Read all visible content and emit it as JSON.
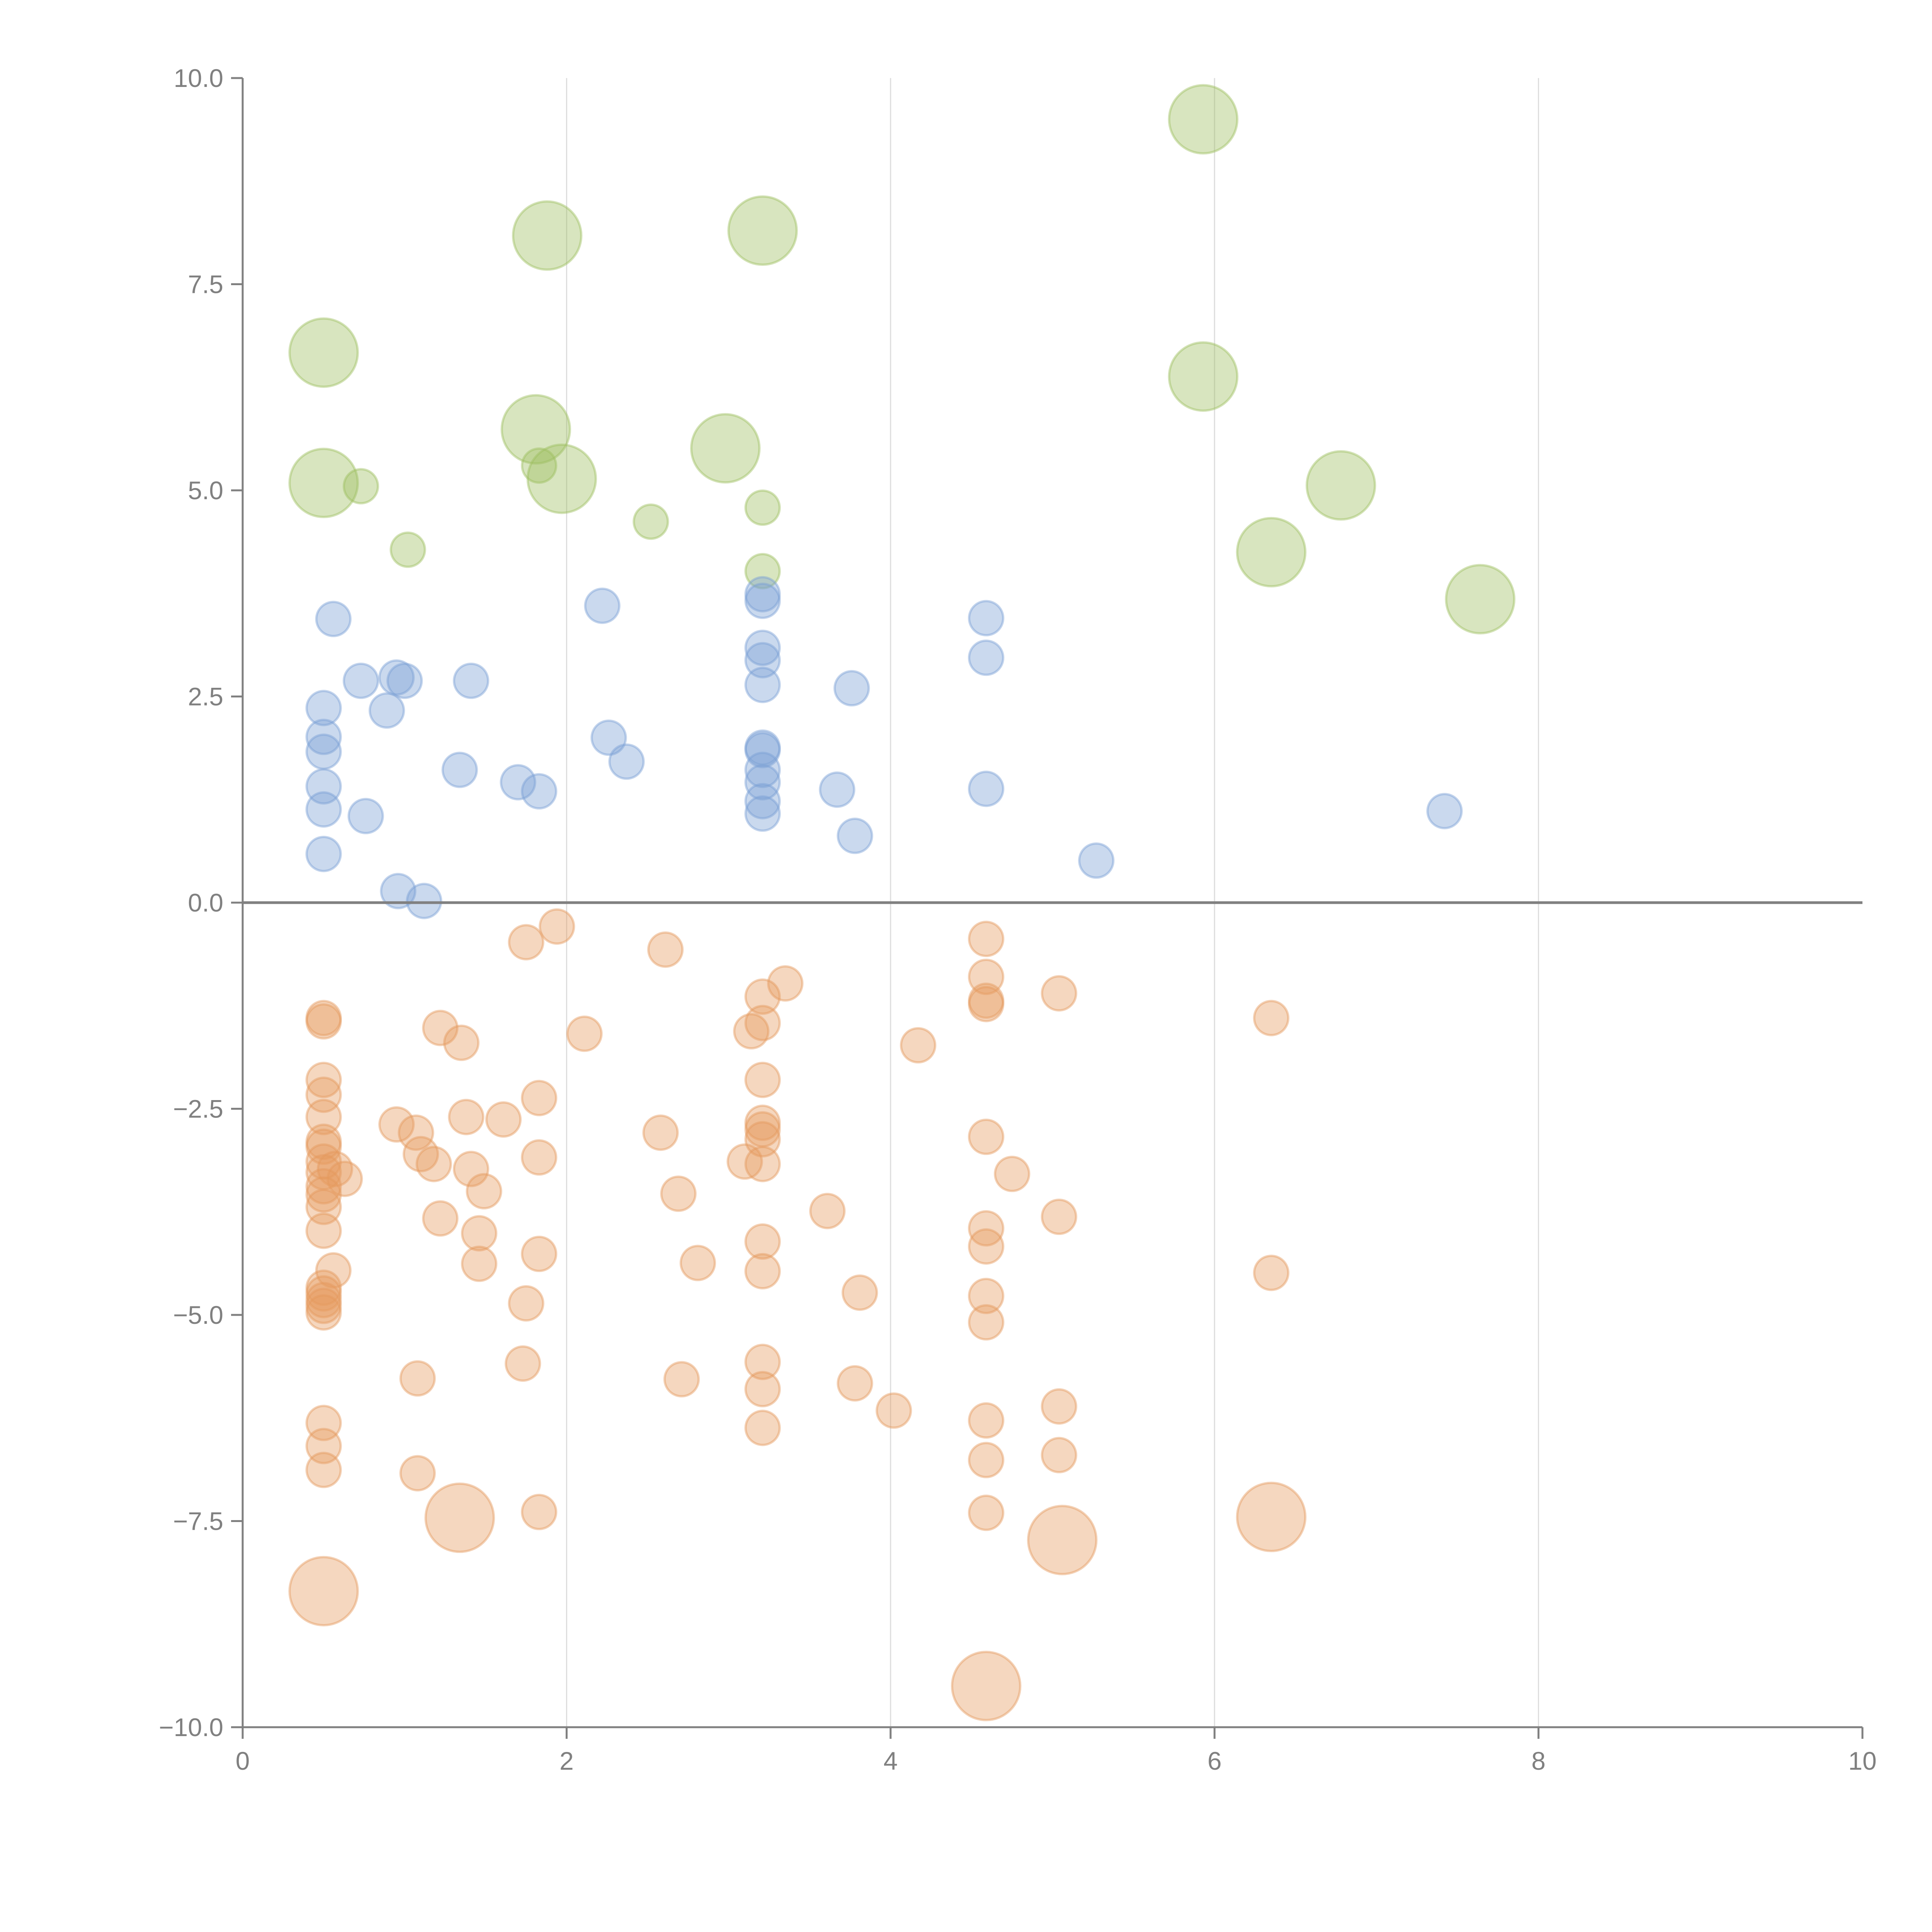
{
  "chart_data": {
    "type": "scatter",
    "title": "",
    "xlabel": "",
    "ylabel": "",
    "xlim": [
      0,
      10
    ],
    "ylim": [
      -10,
      10
    ],
    "grid": {
      "x": true,
      "y": false
    },
    "x_ticks": [
      0,
      2,
      4,
      6,
      8,
      10
    ],
    "x_tick_labels": [
      "0",
      "2",
      "4",
      "6",
      "8",
      "10"
    ],
    "y_ticks": [
      10,
      7.5,
      5,
      2.5,
      0,
      -2.5,
      -5,
      -7.5,
      -10
    ],
    "y_tick_labels": [
      "10.0",
      "7.5",
      "5.0",
      "2.5",
      "0.0",
      "−2.5",
      "−5.0",
      "−7.5",
      "−10.0"
    ],
    "point_format": [
      "x",
      "y",
      "size"
    ],
    "series": [
      {
        "name": "green",
        "color": "#9dbf5f",
        "points": [
          [
            0.5,
            6.67,
            4
          ],
          [
            0.5,
            5.09,
            4
          ],
          [
            1.88,
            8.09,
            4
          ],
          [
            3.21,
            8.15,
            4
          ],
          [
            5.93,
            9.5,
            4
          ],
          [
            1.81,
            5.74,
            4
          ],
          [
            1.97,
            5.14,
            4
          ],
          [
            2.98,
            5.51,
            4
          ],
          [
            5.93,
            6.38,
            4
          ],
          [
            6.78,
            5.06,
            4
          ],
          [
            6.35,
            4.25,
            4
          ],
          [
            7.64,
            3.68,
            4
          ],
          [
            0.73,
            5.05,
            1
          ],
          [
            1.83,
            5.3,
            1
          ],
          [
            1.02,
            4.28,
            1
          ],
          [
            2.52,
            4.62,
            1
          ],
          [
            3.21,
            4.79,
            1
          ],
          [
            3.21,
            4.02,
            1
          ]
        ]
      },
      {
        "name": "blue",
        "color": "#7a9fd4",
        "points": [
          [
            0.56,
            3.44,
            1
          ],
          [
            2.22,
            3.6,
            1
          ],
          [
            3.21,
            3.74,
            1
          ],
          [
            3.21,
            3.66,
            1
          ],
          [
            4.59,
            3.45,
            1
          ],
          [
            3.21,
            3.09,
            1
          ],
          [
            3.21,
            2.94,
            1
          ],
          [
            4.59,
            2.97,
            1
          ],
          [
            0.73,
            2.69,
            1
          ],
          [
            0.95,
            2.73,
            1
          ],
          [
            1.0,
            2.69,
            1
          ],
          [
            1.41,
            2.69,
            1
          ],
          [
            3.21,
            2.64,
            1
          ],
          [
            3.76,
            2.6,
            1
          ],
          [
            0.5,
            2.36,
            1
          ],
          [
            0.89,
            2.33,
            1
          ],
          [
            0.5,
            2.01,
            1
          ],
          [
            2.26,
            2.0,
            1
          ],
          [
            3.21,
            1.88,
            1
          ],
          [
            3.21,
            1.85,
            1
          ],
          [
            0.5,
            1.83,
            1
          ],
          [
            2.37,
            1.71,
            1
          ],
          [
            1.34,
            1.61,
            1
          ],
          [
            3.21,
            1.61,
            1
          ],
          [
            3.21,
            1.46,
            1
          ],
          [
            1.7,
            1.46,
            1
          ],
          [
            1.83,
            1.35,
            1
          ],
          [
            0.5,
            1.41,
            1
          ],
          [
            3.67,
            1.37,
            1
          ],
          [
            4.59,
            1.38,
            1
          ],
          [
            3.21,
            1.23,
            1
          ],
          [
            0.5,
            1.13,
            1
          ],
          [
            3.21,
            1.08,
            1
          ],
          [
            0.76,
            1.05,
            1
          ],
          [
            7.42,
            1.11,
            1
          ],
          [
            3.78,
            0.81,
            1
          ],
          [
            0.5,
            0.59,
            1
          ],
          [
            5.27,
            0.51,
            1
          ],
          [
            0.96,
            0.14,
            1
          ],
          [
            1.12,
            0.02,
            1
          ]
        ]
      },
      {
        "name": "orange",
        "color": "#e59a5e",
        "points": [
          [
            1.94,
            -0.29,
            1
          ],
          [
            1.75,
            -0.48,
            1
          ],
          [
            2.61,
            -0.57,
            1
          ],
          [
            4.59,
            -0.44,
            1
          ],
          [
            4.59,
            -0.9,
            1
          ],
          [
            3.35,
            -0.98,
            1
          ],
          [
            3.21,
            -1.14,
            1
          ],
          [
            5.04,
            -1.1,
            1
          ],
          [
            4.59,
            -1.19,
            1
          ],
          [
            4.59,
            -1.23,
            1
          ],
          [
            6.35,
            -1.4,
            1
          ],
          [
            0.5,
            -1.4,
            1
          ],
          [
            0.5,
            -1.44,
            1
          ],
          [
            3.21,
            -1.46,
            1
          ],
          [
            1.22,
            -1.52,
            1
          ],
          [
            3.14,
            -1.56,
            1
          ],
          [
            2.11,
            -1.59,
            1
          ],
          [
            1.35,
            -1.7,
            1
          ],
          [
            4.17,
            -1.73,
            1
          ],
          [
            0.5,
            -2.15,
            1
          ],
          [
            3.21,
            -2.15,
            1
          ],
          [
            0.5,
            -2.33,
            1
          ],
          [
            1.83,
            -2.37,
            1
          ],
          [
            0.5,
            -2.6,
            1
          ],
          [
            1.38,
            -2.6,
            1
          ],
          [
            1.61,
            -2.63,
            1
          ],
          [
            3.21,
            -2.67,
            1
          ],
          [
            0.95,
            -2.69,
            1
          ],
          [
            3.21,
            -2.75,
            1
          ],
          [
            1.07,
            -2.79,
            1
          ],
          [
            2.58,
            -2.79,
            1
          ],
          [
            4.59,
            -2.84,
            1
          ],
          [
            3.21,
            -2.87,
            1
          ],
          [
            0.5,
            -2.9,
            1
          ],
          [
            0.5,
            -2.96,
            1
          ],
          [
            1.1,
            -3.05,
            1
          ],
          [
            1.83,
            -3.09,
            1
          ],
          [
            3.1,
            -3.14,
            1
          ],
          [
            3.21,
            -3.17,
            1
          ],
          [
            0.5,
            -3.14,
            1
          ],
          [
            1.18,
            -3.17,
            1
          ],
          [
            0.57,
            -3.23,
            1
          ],
          [
            1.41,
            -3.23,
            1
          ],
          [
            0.5,
            -3.27,
            1
          ],
          [
            4.75,
            -3.29,
            1
          ],
          [
            0.63,
            -3.35,
            1
          ],
          [
            0.5,
            -3.44,
            1
          ],
          [
            1.49,
            -3.5,
            1
          ],
          [
            2.69,
            -3.53,
            1
          ],
          [
            0.5,
            -3.54,
            1
          ],
          [
            0.5,
            -3.69,
            1
          ],
          [
            3.61,
            -3.74,
            1
          ],
          [
            1.22,
            -3.83,
            1
          ],
          [
            5.04,
            -3.81,
            1
          ],
          [
            4.59,
            -3.95,
            1
          ],
          [
            0.5,
            -3.98,
            1
          ],
          [
            1.46,
            -4.01,
            1
          ],
          [
            3.21,
            -4.11,
            1
          ],
          [
            4.59,
            -4.17,
            1
          ],
          [
            1.83,
            -4.26,
            1
          ],
          [
            1.46,
            -4.38,
            1
          ],
          [
            2.81,
            -4.37,
            1
          ],
          [
            0.56,
            -4.46,
            1
          ],
          [
            3.21,
            -4.47,
            1
          ],
          [
            6.35,
            -4.49,
            1
          ],
          [
            0.5,
            -4.67,
            1
          ],
          [
            3.81,
            -4.73,
            1
          ],
          [
            0.5,
            -4.74,
            1
          ],
          [
            4.59,
            -4.77,
            1
          ],
          [
            0.5,
            -4.82,
            1
          ],
          [
            1.75,
            -4.86,
            1
          ],
          [
            0.5,
            -4.89,
            1
          ],
          [
            0.5,
            -4.97,
            1
          ],
          [
            4.59,
            -5.09,
            1
          ],
          [
            1.73,
            -5.59,
            1
          ],
          [
            3.21,
            -5.57,
            1
          ],
          [
            1.08,
            -5.77,
            1
          ],
          [
            2.71,
            -5.78,
            1
          ],
          [
            3.78,
            -5.83,
            1
          ],
          [
            3.21,
            -5.9,
            1
          ],
          [
            5.04,
            -6.11,
            1
          ],
          [
            4.02,
            -6.16,
            1
          ],
          [
            0.5,
            -6.31,
            1
          ],
          [
            4.59,
            -6.28,
            1
          ],
          [
            3.21,
            -6.37,
            1
          ],
          [
            0.5,
            -6.59,
            1
          ],
          [
            5.04,
            -6.7,
            1
          ],
          [
            4.59,
            -6.76,
            1
          ],
          [
            0.5,
            -6.88,
            1
          ],
          [
            1.08,
            -6.92,
            1
          ],
          [
            1.83,
            -7.39,
            1
          ],
          [
            4.59,
            -7.4,
            1
          ],
          [
            1.34,
            -7.46,
            4
          ],
          [
            6.35,
            -7.45,
            4
          ],
          [
            5.06,
            -7.73,
            4
          ],
          [
            0.5,
            -8.35,
            4
          ],
          [
            4.59,
            -9.5,
            4
          ]
        ]
      }
    ]
  }
}
